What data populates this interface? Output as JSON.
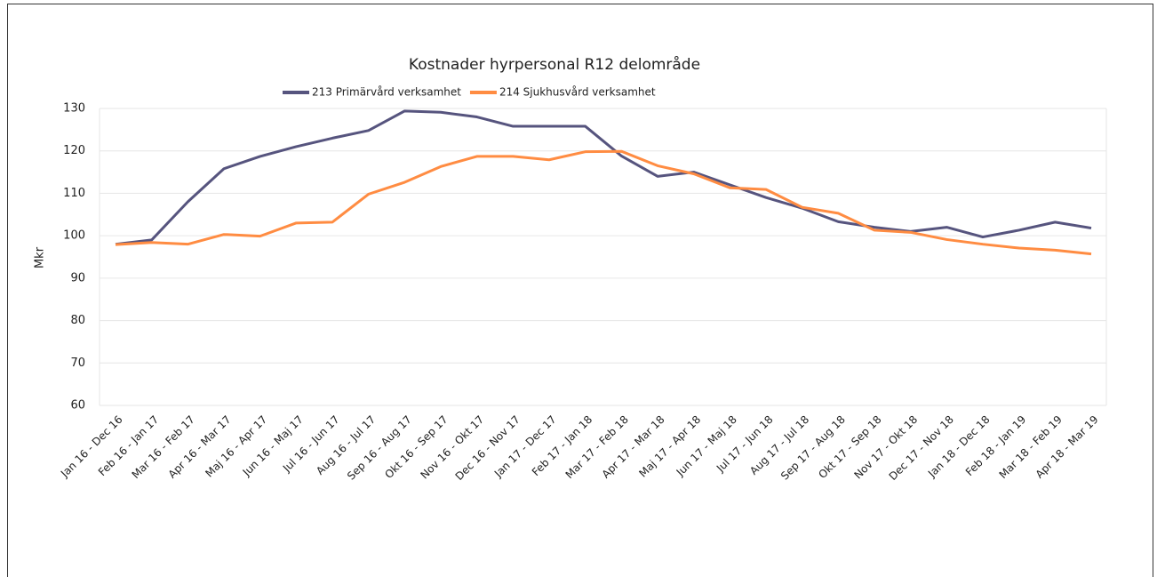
{
  "chart_data": {
    "type": "line",
    "title": "Kostnader hyrpersonal R12 delområde",
    "y_label": "Mkr",
    "categories": [
      "Jan 16 - Dec 16",
      "Feb 16 - Jan 17",
      "Mar 16 - Feb 17",
      "Apr 16 - Mar 17",
      "Maj 16 - Apr 17",
      "Jun 16 - Maj 17",
      "Jul 16 - Jun 17",
      "Aug 16 - Jul 17",
      "Sep 16 - Aug 17",
      "Okt 16 - Sep 17",
      "Nov 16 - Okt 17",
      "Dec 16 - Nov 17",
      "Jan 17 - Dec 17",
      "Feb 17 - Jan 18",
      "Mar 17 - Feb 18",
      "Apr 17 - Mar 18",
      "Maj 17 - Apr 18",
      "Jun 17 - Maj 18",
      "Jul 17 - Jun 18",
      "Aug 17 - Jul 18",
      "Sep 17 - Aug 18",
      "Okt 17 - Sep 18",
      "Nov 17 - Okt 18",
      "Dec 17 - Nov 18",
      "Jan 18 - Dec 18",
      "Feb 18 - Jan 19",
      "Mar 18 - Feb 19",
      "Apr 18 - Mar 19"
    ],
    "series": [
      {
        "name": "213 Primärvård verksamhet",
        "color": "#56547e",
        "values": [
          98,
          99,
          108,
          115.8,
          118.7,
          121,
          123,
          124.8,
          129.4,
          129.1,
          128,
          125.8,
          125.8,
          125.8,
          118.8,
          114,
          115,
          112,
          109,
          106.5,
          103.3,
          102,
          101,
          102,
          99.7,
          101.3,
          103.2,
          101.8
        ]
      },
      {
        "name": "214 Sjukhusvård verksamhet",
        "color": "#ff8c42",
        "values": [
          97.9,
          98.4,
          98,
          100.3,
          99.9,
          103,
          103.2,
          109.8,
          112.6,
          116.3,
          118.7,
          118.7,
          117.9,
          119.8,
          119.9,
          116.5,
          114.6,
          111.3,
          110.9,
          106.7,
          105.3,
          101.3,
          100.8,
          99.1,
          98,
          97.1,
          96.6,
          95.7
        ]
      }
    ],
    "ylim": [
      60,
      130
    ],
    "yticks": [
      60,
      70,
      80,
      90,
      100,
      110,
      120,
      130
    ],
    "grid": true,
    "legend": "top"
  }
}
